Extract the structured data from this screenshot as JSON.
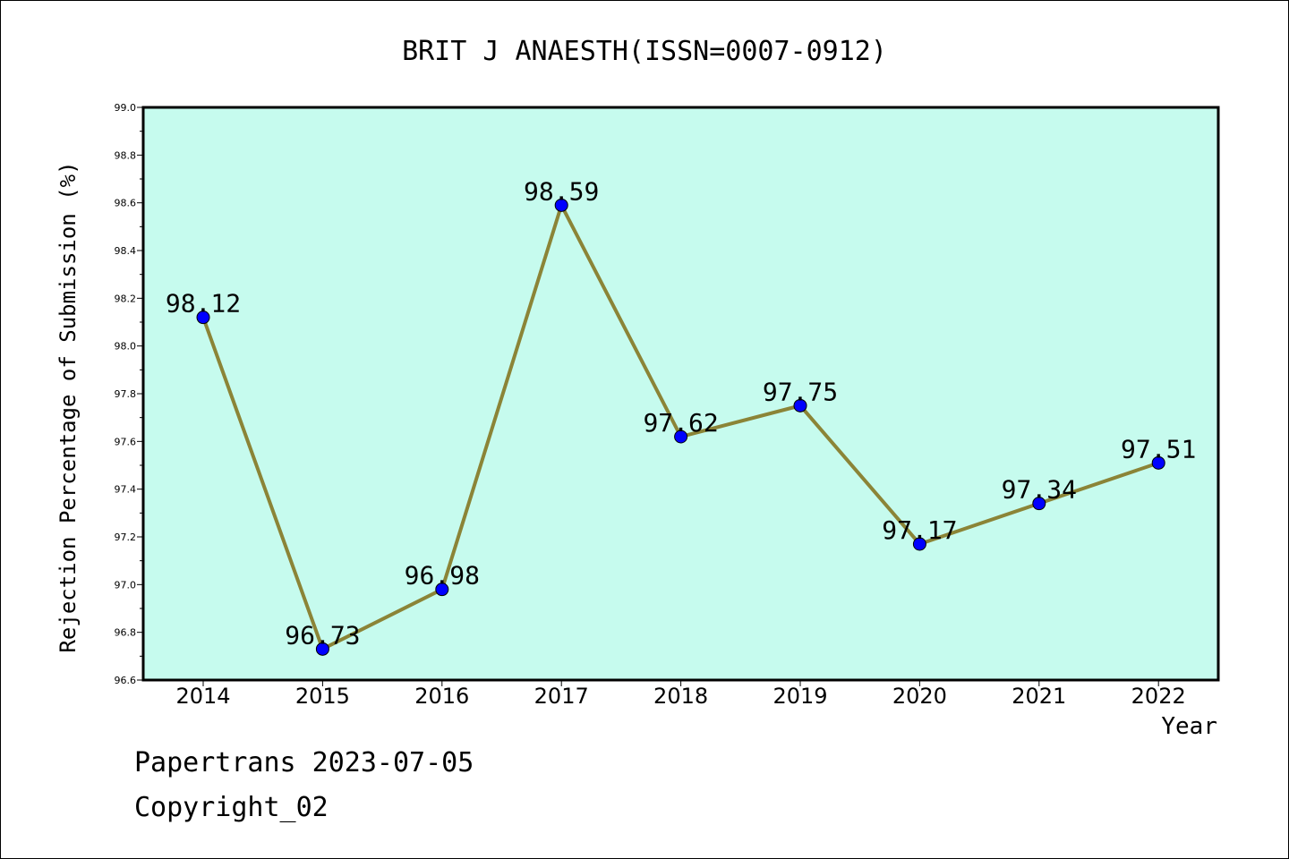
{
  "chart_data": {
    "type": "line",
    "title": "BRIT J ANAESTH(ISSN=0007-0912)",
    "xlabel": "Year",
    "ylabel": "Rejection Percentage of Submission (%)",
    "categories": [
      "2014",
      "2015",
      "2016",
      "2017",
      "2018",
      "2019",
      "2020",
      "2021",
      "2022"
    ],
    "series": [
      {
        "values": [
          98.12,
          96.73,
          96.98,
          98.59,
          97.62,
          97.75,
          97.17,
          97.34,
          97.51
        ]
      }
    ],
    "data_labels": [
      "98.12",
      "96.73",
      "96.98",
      "98.59",
      "97.62",
      "97.75",
      "97.17",
      "97.34",
      "97.51"
    ],
    "ylim": [
      96.6,
      99.0
    ],
    "yticks": [
      "96.6",
      "96.8",
      "97.0",
      "97.2",
      "97.4",
      "97.6",
      "97.8",
      "98.0",
      "98.2",
      "98.4",
      "98.6",
      "98.8",
      "99.0"
    ],
    "grid": false,
    "colors": {
      "plot_bg": "#c6fbee",
      "line": "#8b8437",
      "marker": "#0000ff"
    }
  },
  "footer": {
    "line1": "Papertrans 2023-07-05",
    "line2": "Copyright_02"
  }
}
